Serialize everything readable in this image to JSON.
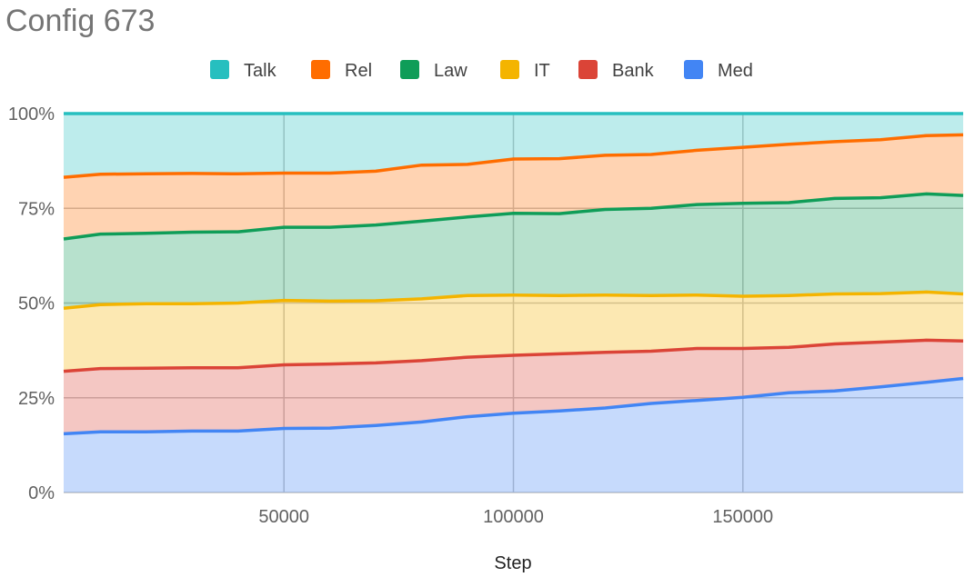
{
  "chart_data": {
    "type": "area",
    "stacked": true,
    "percent": true,
    "title": "Config 673",
    "xlabel": "Step",
    "ylabel": "",
    "xlim": [
      2000,
      198000
    ],
    "ylim": [
      0,
      100
    ],
    "x_ticks": [
      50000,
      100000,
      150000
    ],
    "y_ticks": [
      0,
      25,
      50,
      75,
      100
    ],
    "y_tick_labels": [
      "0%",
      "25%",
      "50%",
      "75%",
      "100%"
    ],
    "grid": true,
    "legend_position": "top",
    "legend_order": [
      "Talk",
      "Rel",
      "Law",
      "IT",
      "Bank",
      "Med"
    ],
    "x": [
      2000,
      10000,
      20000,
      30000,
      40000,
      50000,
      60000,
      70000,
      80000,
      90000,
      100000,
      110000,
      120000,
      130000,
      140000,
      150000,
      160000,
      170000,
      180000,
      190000,
      198000
    ],
    "series": [
      {
        "name": "Med",
        "color": "#4285f4",
        "values": [
          15.5,
          16.0,
          16.0,
          16.2,
          16.2,
          16.9,
          17.0,
          17.7,
          18.6,
          20.0,
          20.9,
          21.5,
          22.3,
          23.5,
          24.3,
          25.1,
          26.3,
          26.8,
          27.9,
          29.1,
          30.1
        ]
      },
      {
        "name": "Bank",
        "color": "#db4437",
        "values": [
          16.5,
          16.7,
          16.8,
          16.7,
          16.7,
          16.8,
          16.9,
          16.5,
          16.2,
          15.7,
          15.3,
          15.1,
          14.7,
          13.8,
          13.7,
          12.9,
          12.0,
          12.4,
          11.8,
          11.1,
          9.9
        ]
      },
      {
        "name": "IT",
        "color": "#f4b400",
        "values": [
          16.6,
          16.9,
          17.0,
          16.9,
          17.1,
          17.0,
          16.6,
          16.4,
          16.3,
          16.3,
          15.9,
          15.4,
          15.1,
          14.7,
          14.1,
          13.8,
          13.7,
          13.2,
          12.8,
          12.7,
          12.4
        ]
      },
      {
        "name": "Law",
        "color": "#0f9d58",
        "values": [
          18.3,
          18.6,
          18.6,
          18.9,
          18.8,
          19.3,
          19.5,
          20.0,
          20.5,
          20.7,
          21.6,
          21.6,
          22.6,
          23.0,
          23.9,
          24.5,
          24.5,
          25.2,
          25.3,
          25.9,
          26.0
        ]
      },
      {
        "name": "Rel",
        "color": "#ff6d00",
        "values": [
          16.3,
          15.8,
          15.7,
          15.5,
          15.3,
          14.3,
          14.3,
          14.2,
          14.8,
          13.9,
          14.3,
          14.5,
          14.3,
          14.2,
          14.3,
          14.8,
          15.4,
          15.0,
          15.3,
          15.4,
          16.0
        ]
      },
      {
        "name": "Talk",
        "color": "#26bfbf",
        "values": [
          16.8,
          16.0,
          15.9,
          15.8,
          15.9,
          15.7,
          15.7,
          15.2,
          13.6,
          13.4,
          12.0,
          11.9,
          11.0,
          10.8,
          9.7,
          8.9,
          8.1,
          7.4,
          6.9,
          5.8,
          5.6
        ]
      }
    ]
  }
}
